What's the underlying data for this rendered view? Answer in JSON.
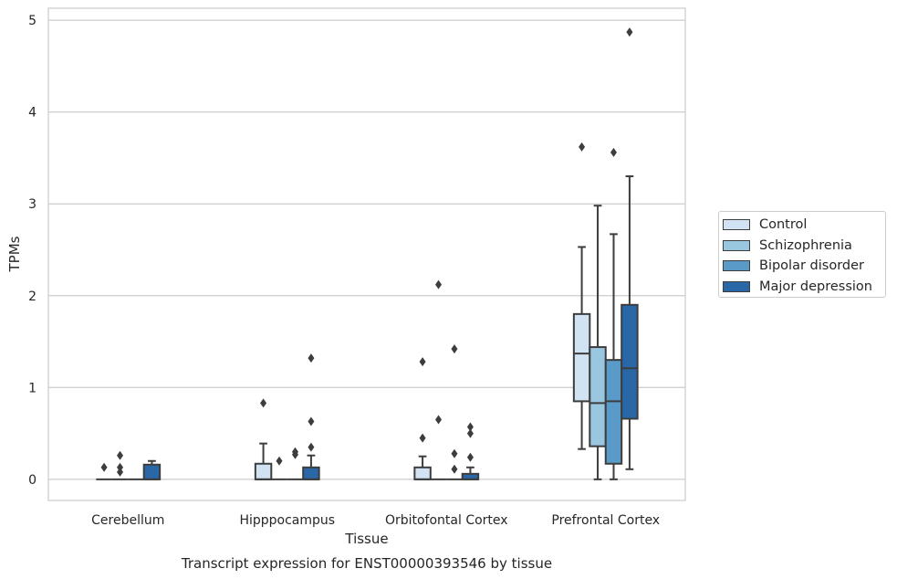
{
  "chart_data": {
    "type": "box",
    "title": "",
    "caption": "Transcript expression for ENST00000393546 by tissue",
    "xlabel": "Tissue",
    "ylabel": "TPMs",
    "ylim": [
      -0.23,
      5.13
    ],
    "yticks": [
      0,
      1,
      2,
      3,
      4,
      5
    ],
    "grid": "horizontal",
    "legend_position": "right",
    "categories": [
      "Cerebellum",
      "Hipppocampus",
      "Orbitofontal Cortex",
      "Prefrontal Cortex"
    ],
    "series": [
      {
        "name": "Control",
        "color": "#d1e2f2",
        "boxes": [
          {
            "q1": 0,
            "median": 0,
            "q3": 0,
            "whisker_low": 0,
            "whisker_high": 0,
            "outliers": [
              0.13
            ]
          },
          {
            "q1": 0,
            "median": 0,
            "q3": 0.17,
            "whisker_low": 0,
            "whisker_high": 0.39,
            "outliers": [
              0.83
            ]
          },
          {
            "q1": 0,
            "median": 0,
            "q3": 0.13,
            "whisker_low": 0,
            "whisker_high": 0.25,
            "outliers": [
              0.45,
              1.28
            ]
          },
          {
            "q1": 0.85,
            "median": 1.37,
            "q3": 1.8,
            "whisker_low": 0.33,
            "whisker_high": 2.53,
            "outliers": [
              3.62
            ]
          }
        ]
      },
      {
        "name": "Schizophrenia",
        "color": "#9ac7e0",
        "boxes": [
          {
            "q1": 0,
            "median": 0,
            "q3": 0,
            "whisker_low": 0,
            "whisker_high": 0,
            "outliers": [
              0.08,
              0.13,
              0.26
            ]
          },
          {
            "q1": 0,
            "median": 0,
            "q3": 0,
            "whisker_low": 0,
            "whisker_high": 0,
            "outliers": [
              0.2
            ]
          },
          {
            "q1": 0,
            "median": 0,
            "q3": 0,
            "whisker_low": 0,
            "whisker_high": 0,
            "outliers": [
              0.65,
              2.12
            ]
          },
          {
            "q1": 0.36,
            "median": 0.83,
            "q3": 1.44,
            "whisker_low": 0,
            "whisker_high": 2.98,
            "outliers": []
          }
        ]
      },
      {
        "name": "Bipolar disorder",
        "color": "#5a9ac8",
        "boxes": [
          {
            "q1": 0,
            "median": 0,
            "q3": 0,
            "whisker_low": 0,
            "whisker_high": 0,
            "outliers": []
          },
          {
            "q1": 0,
            "median": 0,
            "q3": 0,
            "whisker_low": 0,
            "whisker_high": 0,
            "outliers": [
              0.27,
              0.3
            ]
          },
          {
            "q1": 0,
            "median": 0,
            "q3": 0,
            "whisker_low": 0,
            "whisker_high": 0,
            "outliers": [
              0.11,
              0.28,
              1.42
            ]
          },
          {
            "q1": 0.17,
            "median": 0.85,
            "q3": 1.3,
            "whisker_low": 0,
            "whisker_high": 2.67,
            "outliers": [
              3.56
            ]
          }
        ]
      },
      {
        "name": "Major depression",
        "color": "#2967a6",
        "boxes": [
          {
            "q1": 0,
            "median": 0,
            "q3": 0.16,
            "whisker_low": 0,
            "whisker_high": 0.2,
            "outliers": []
          },
          {
            "q1": 0,
            "median": 0,
            "q3": 0.13,
            "whisker_low": 0,
            "whisker_high": 0.26,
            "outliers": [
              0.35,
              0.63,
              1.32
            ]
          },
          {
            "q1": 0,
            "median": 0,
            "q3": 0.06,
            "whisker_low": 0,
            "whisker_high": 0.13,
            "outliers": [
              0.24,
              0.5,
              0.57
            ]
          },
          {
            "q1": 0.66,
            "median": 1.21,
            "q3": 1.9,
            "whisker_low": 0.11,
            "whisker_high": 3.3,
            "outliers": [
              4.87
            ]
          }
        ]
      }
    ]
  }
}
